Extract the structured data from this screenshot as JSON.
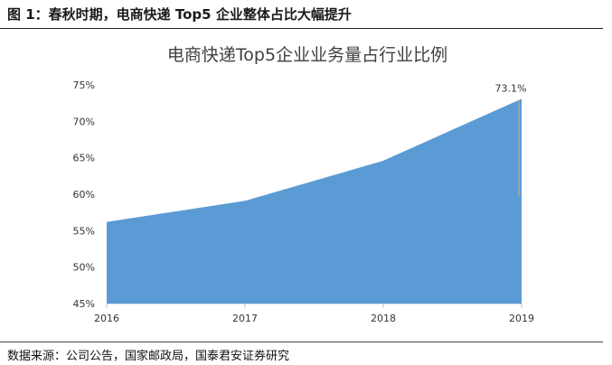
{
  "figure": {
    "caption": "图 1：春秋时期，电商快递 Top5 企业整体占比大幅提升",
    "source": "数据来源：公司公告，国家邮政局，国泰君安证券研究"
  },
  "chart_data": {
    "type": "area",
    "title": "电商快递Top5企业业务量占行业比例",
    "categories": [
      "2016",
      "2017",
      "2018",
      "2019"
    ],
    "series": [
      {
        "values": [
          56.2,
          59.1,
          64.6,
          73.1
        ],
        "color": "#5b9bd5"
      }
    ],
    "ylim": [
      45,
      75
    ],
    "yticks": [
      45,
      50,
      55,
      60,
      65,
      70,
      75
    ],
    "ytick_labels": [
      "45%",
      "50%",
      "55%",
      "60%",
      "65%",
      "70%",
      "75%"
    ],
    "data_labels": [
      {
        "index": 3,
        "text": "73.1%"
      }
    ],
    "grid": false,
    "legend": "none"
  }
}
